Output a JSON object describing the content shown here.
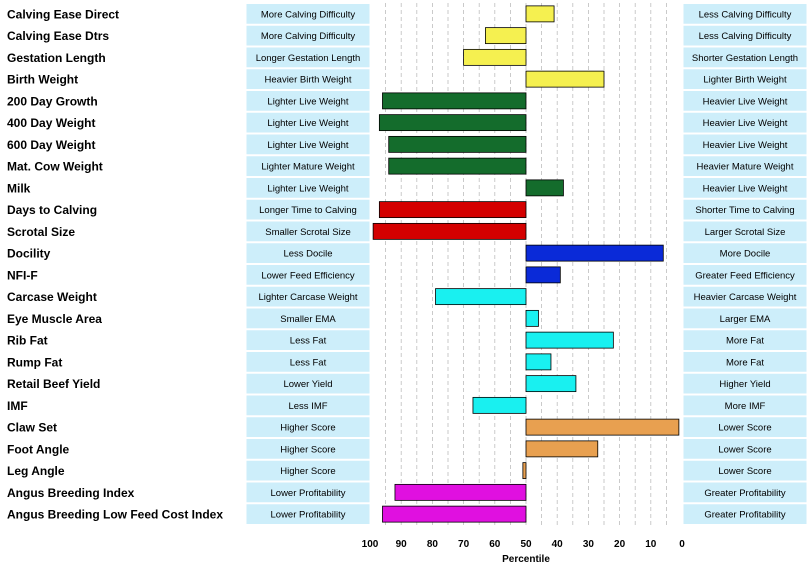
{
  "chart_data": {
    "type": "bar",
    "title": "",
    "xlabel": "Percentile",
    "x_reversed": true,
    "xlim": [
      100,
      0
    ],
    "baseline": 50,
    "x_ticks": [
      100,
      90,
      80,
      70,
      60,
      50,
      40,
      30,
      20,
      10,
      0
    ],
    "grid": "vertical-dashed",
    "traits": [
      {
        "name": "Calving Ease Direct",
        "left": "More Calving Difficulty",
        "right": "Less Calving Difficulty",
        "value": 41,
        "color": "#f5f050"
      },
      {
        "name": "Calving Ease Dtrs",
        "left": "More Calving Difficulty",
        "right": "Less Calving Difficulty",
        "value": 63,
        "color": "#f5f050"
      },
      {
        "name": "Gestation Length",
        "left": "Longer Gestation Length",
        "right": "Shorter Gestation Length",
        "value": 70,
        "color": "#f5f050"
      },
      {
        "name": "Birth Weight",
        "left": "Heavier Birth Weight",
        "right": "Lighter Birth Weight",
        "value": 25,
        "color": "#f5f050"
      },
      {
        "name": "200 Day Growth",
        "left": "Lighter Live Weight",
        "right": "Heavier Live Weight",
        "value": 96,
        "color": "#146c2c"
      },
      {
        "name": "400 Day Weight",
        "left": "Lighter Live Weight",
        "right": "Heavier Live Weight",
        "value": 97,
        "color": "#146c2c"
      },
      {
        "name": "600 Day Weight",
        "left": "Lighter Live Weight",
        "right": "Heavier Live Weight",
        "value": 94,
        "color": "#146c2c"
      },
      {
        "name": "Mat. Cow Weight",
        "left": "Lighter Mature Weight",
        "right": "Heavier Mature Weight",
        "value": 94,
        "color": "#146c2c"
      },
      {
        "name": "Milk",
        "left": "Lighter Live Weight",
        "right": "Heavier Live Weight",
        "value": 38,
        "color": "#146c2c"
      },
      {
        "name": "Days to Calving",
        "left": "Longer Time to Calving",
        "right": "Shorter Time to Calving",
        "value": 97,
        "color": "#d40000"
      },
      {
        "name": "Scrotal Size",
        "left": "Smaller Scrotal Size",
        "right": "Larger Scrotal Size",
        "value": 99,
        "color": "#d40000"
      },
      {
        "name": "Docility",
        "left": "Less Docile",
        "right": "More Docile",
        "value": 6,
        "color": "#0a2ad8"
      },
      {
        "name": "NFI-F",
        "left": "Lower Feed Efficiency",
        "right": "Greater Feed Efficiency",
        "value": 39,
        "color": "#0a2ad8"
      },
      {
        "name": "Carcase Weight",
        "left": "Lighter Carcase Weight",
        "right": "Heavier Carcase Weight",
        "value": 79,
        "color": "#19f0f0"
      },
      {
        "name": "Eye Muscle Area",
        "left": "Smaller EMA",
        "right": "Larger EMA",
        "value": 46,
        "color": "#19f0f0"
      },
      {
        "name": "Rib Fat",
        "left": "Less Fat",
        "right": "More Fat",
        "value": 22,
        "color": "#19f0f0"
      },
      {
        "name": "Rump Fat",
        "left": "Less Fat",
        "right": "More Fat",
        "value": 42,
        "color": "#19f0f0"
      },
      {
        "name": "Retail Beef Yield",
        "left": "Lower Yield",
        "right": "Higher Yield",
        "value": 34,
        "color": "#19f0f0"
      },
      {
        "name": "IMF",
        "left": "Less IMF",
        "right": "More IMF",
        "value": 67,
        "color": "#19f0f0"
      },
      {
        "name": "Claw Set",
        "left": "Higher Score",
        "right": "Lower Score",
        "value": 1,
        "color": "#e8a050"
      },
      {
        "name": "Foot Angle",
        "left": "Higher Score",
        "right": "Lower Score",
        "value": 27,
        "color": "#e8a050"
      },
      {
        "name": "Leg Angle",
        "left": "Higher Score",
        "right": "Lower Score",
        "value": 51,
        "color": "#e8a050"
      },
      {
        "name": "Angus Breeding Index",
        "left": "Lower Profitability",
        "right": "Greater Profitability",
        "value": 92,
        "color": "#e010e0"
      },
      {
        "name": "Angus Breeding Low Feed Cost Index",
        "left": "Lower Profitability",
        "right": "Greater Profitability",
        "value": 96,
        "color": "#e010e0"
      }
    ]
  }
}
